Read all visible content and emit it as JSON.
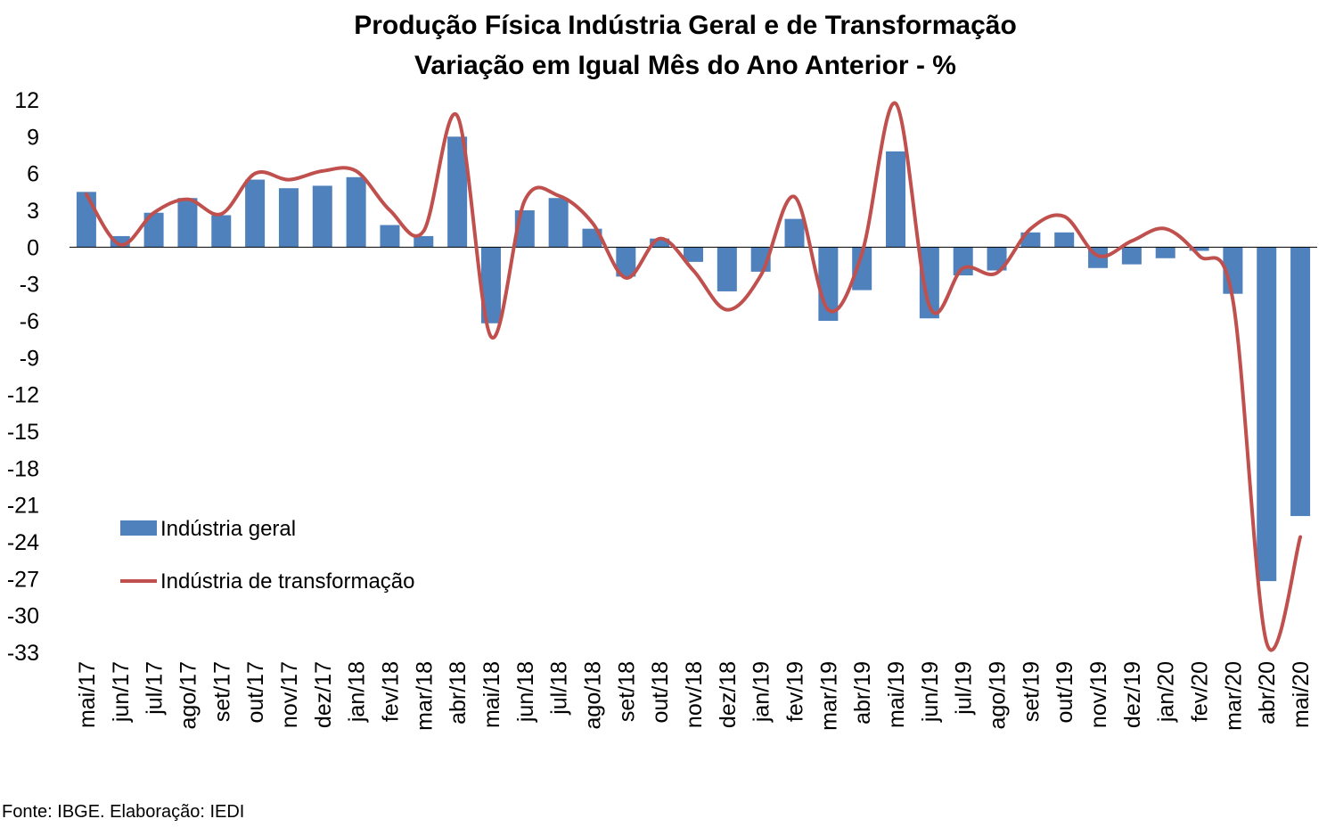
{
  "chart_data": {
    "type": "bar",
    "title": "Produção Física Indústria Geral e de Transformação",
    "subtitle": "Variação em Igual Mês do Ano Anterior - %",
    "categories": [
      "mai/17",
      "jun/17",
      "jul/17",
      "ago/17",
      "set/17",
      "out/17",
      "nov/17",
      "dez/17",
      "jan/18",
      "fev/18",
      "mar/18",
      "abr/18",
      "mai/18",
      "jun/18",
      "jul/18",
      "ago/18",
      "set/18",
      "out/18",
      "nov/18",
      "dez/18",
      "jan/19",
      "fev/19",
      "mar/19",
      "abr/19",
      "mai/19",
      "jun/19",
      "jul/19",
      "ago/19",
      "set/19",
      "out/19",
      "nov/19",
      "dez/19",
      "jan/20",
      "fev/20",
      "mar/20",
      "abr/20",
      "mai/20"
    ],
    "series": [
      {
        "name": "Indústria geral",
        "type": "bar",
        "color": "#4f81bd",
        "values": [
          4.5,
          0.9,
          2.8,
          4.0,
          2.6,
          5.5,
          4.8,
          5.0,
          5.7,
          1.8,
          0.9,
          9.0,
          -6.2,
          3.0,
          4.0,
          1.5,
          -2.4,
          0.7,
          -1.2,
          -3.6,
          -2.0,
          2.3,
          -6.0,
          -3.5,
          7.8,
          -5.8,
          -2.3,
          -1.9,
          1.2,
          1.2,
          -1.7,
          -1.4,
          -0.9,
          -0.3,
          -3.8,
          -27.2,
          -21.9
        ]
      },
      {
        "name": "Indústria de transformação",
        "type": "line",
        "color": "#c0504d",
        "values": [
          4.3,
          0.2,
          2.8,
          3.9,
          2.7,
          6.0,
          5.5,
          6.2,
          6.2,
          3.0,
          1.3,
          10.7,
          -7.3,
          3.8,
          4.2,
          2.0,
          -2.5,
          0.7,
          -1.9,
          -5.1,
          -2.3,
          4.1,
          -5.1,
          -0.5,
          11.7,
          -4.8,
          -1.7,
          -2.1,
          1.5,
          2.5,
          -0.7,
          0.5,
          1.5,
          -0.7,
          -4.3,
          -32.2,
          -23.6
        ]
      }
    ],
    "y_ticks": [
      "12",
      "9",
      "6",
      "3",
      "0",
      "-3",
      "-6",
      "-9",
      "-12",
      "-15",
      "-18",
      "-21",
      "-24",
      "-27",
      "-30",
      "-33"
    ],
    "ylim": [
      -33,
      12
    ],
    "ystep": 3,
    "grid": false,
    "legend_position": "bottom-left"
  },
  "source_note": "Fonte: IBGE. Elaboração: IEDI"
}
